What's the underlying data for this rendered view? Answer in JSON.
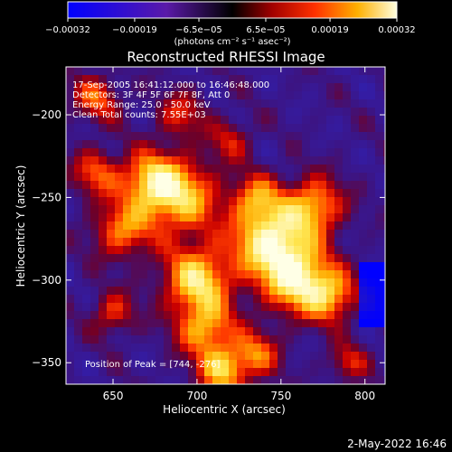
{
  "chart_data": {
    "type": "heatmap",
    "title": "Reconstructed RHESSI Image",
    "xlabel": "Heliocentric X (arcsec)",
    "ylabel": "Heliocentric Y (arcsec)",
    "xlim": [
      622,
      812
    ],
    "ylim": [
      -363,
      -171
    ],
    "x_ticks": [
      650,
      700,
      750,
      800
    ],
    "y_ticks": [
      -350,
      -300,
      -250,
      -200
    ],
    "colorbar": {
      "range": [
        -0.00032,
        0.00032
      ],
      "tick_values": [
        -0.00032,
        -0.00019,
        -6.5e-05,
        6.5e-05,
        0.00019,
        0.00032
      ],
      "tick_labels": [
        "-0.00032",
        "-0.00019",
        "-6.5e-05",
        "6.5e-05",
        "0.00019",
        "0.00032"
      ],
      "units_label": "(photons cm⁻² s⁻¹ asec⁻²)"
    },
    "annotations": {
      "time": "17-Sep-2005 16:41:12.000 to 16:46:48.000",
      "detectors": "Detectors: 3F 4F 5F 6F 7F 8F, Att 0",
      "energy": "Energy Range: 25.0 - 50.0 keV",
      "clean": "Clean    Total counts: 7.55E+03",
      "peak": "Position of Peak = [744, -276]"
    },
    "peak": [
      744,
      -276
    ],
    "footer": "2-May-2022 16:46"
  }
}
